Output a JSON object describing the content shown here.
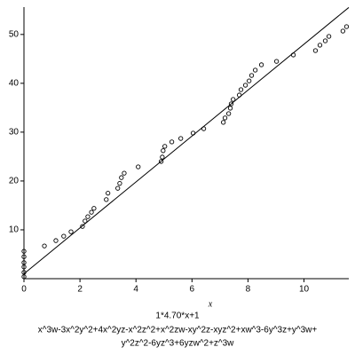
{
  "chart_data": {
    "type": "scatter",
    "xlabel": "x",
    "caption": [
      "1*4.70*x+1",
      "x^3w-3x^2y^2+4x^2yz-x^2z^2+x^2zw-xy^2z-xyz^2+xw^3-6y^3z+y^3w+",
      "y^2z^2-6yz^3+6yzw^2+z^3w"
    ],
    "xlim": [
      0,
      11.6
    ],
    "ylim": [
      0,
      55.6
    ],
    "xticks": [
      0,
      2,
      4,
      6,
      8,
      10
    ],
    "yticks": [
      10,
      20,
      30,
      40,
      50
    ],
    "color": "#000000",
    "points": {
      "x": [
        0,
        0,
        0,
        0,
        0,
        0,
        0.73,
        1.14,
        1.42,
        1.68,
        2.09,
        2.18,
        2.28,
        2.41,
        2.5,
        2.94,
        3.0,
        3.35,
        3.42,
        3.48,
        3.58,
        4.08,
        4.9,
        4.94,
        4.97,
        5.03,
        5.28,
        5.6,
        6.04,
        6.42,
        7.12,
        7.18,
        7.31,
        7.37,
        7.4,
        7.47,
        7.69,
        7.75,
        7.91,
        8.04,
        8.13,
        8.26,
        8.48,
        9.02,
        9.62,
        10.41,
        10.57,
        10.76,
        10.89,
        11.39,
        11.52
      ],
      "values": [
        5.6,
        4.5,
        3.3,
        2.4,
        1.3,
        0.4,
        6.7,
        7.8,
        8.7,
        9.6,
        10.7,
        11.8,
        12.7,
        13.6,
        14.4,
        16.2,
        17.5,
        18.5,
        19.5,
        20.7,
        21.6,
        22.9,
        24,
        24.9,
        26.2,
        27.1,
        28,
        28.7,
        29.8,
        30.7,
        32,
        32.9,
        33.8,
        34.9,
        35.8,
        36.7,
        37.6,
        38.7,
        39.6,
        40.5,
        41.6,
        42.7,
        43.8,
        44.5,
        45.8,
        46.7,
        47.8,
        48.7,
        49.6,
        50.7,
        51.6
      ]
    },
    "fit_line": {
      "x": [
        0,
        11.6
      ],
      "values": [
        1,
        55.52
      ]
    }
  }
}
